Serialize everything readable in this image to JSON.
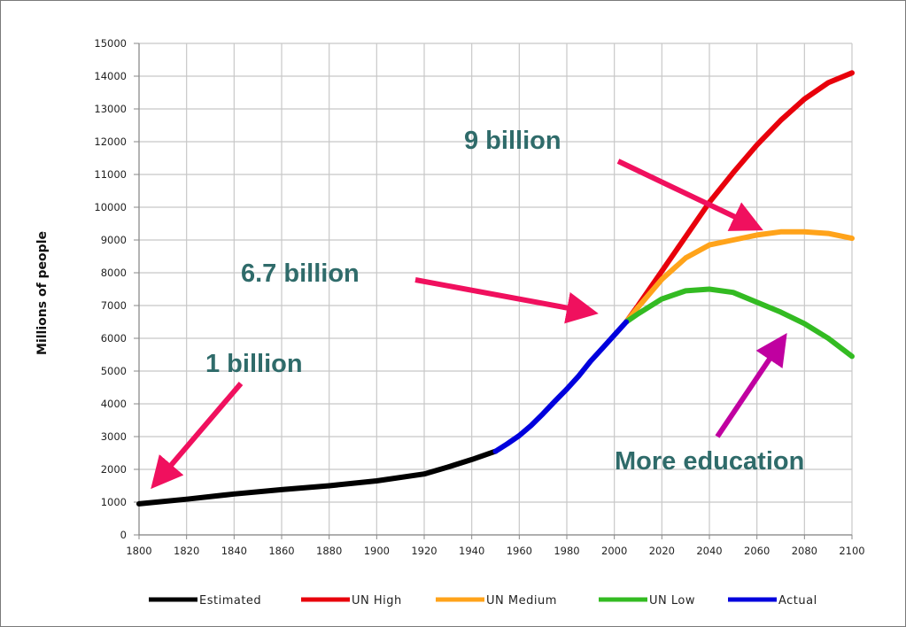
{
  "chart_data": {
    "type": "line",
    "title": "",
    "xlabel": "",
    "ylabel": "Millions of people",
    "xlim": [
      1800,
      2100
    ],
    "ylim": [
      0,
      15000
    ],
    "x_ticks": [
      1800,
      1820,
      1840,
      1860,
      1880,
      1900,
      1920,
      1940,
      1960,
      1980,
      2000,
      2020,
      2040,
      2060,
      2080,
      2100
    ],
    "y_ticks": [
      0,
      1000,
      2000,
      3000,
      4000,
      5000,
      6000,
      7000,
      8000,
      9000,
      10000,
      11000,
      12000,
      13000,
      14000,
      15000
    ],
    "grid": true,
    "legend_position": "bottom",
    "series": [
      {
        "name": "Estimated",
        "color": "#000000",
        "points": [
          [
            1800,
            950
          ],
          [
            1820,
            1090
          ],
          [
            1840,
            1250
          ],
          [
            1860,
            1380
          ],
          [
            1880,
            1500
          ],
          [
            1900,
            1650
          ],
          [
            1920,
            1860
          ],
          [
            1930,
            2070
          ],
          [
            1940,
            2300
          ],
          [
            1950,
            2550
          ]
        ]
      },
      {
        "name": "UN High",
        "color": "#e8000b",
        "points": [
          [
            2005,
            6500
          ],
          [
            2010,
            7000
          ],
          [
            2020,
            8050
          ],
          [
            2030,
            9100
          ],
          [
            2040,
            10150
          ],
          [
            2050,
            11050
          ],
          [
            2060,
            11900
          ],
          [
            2070,
            12650
          ],
          [
            2080,
            13300
          ],
          [
            2090,
            13800
          ],
          [
            2100,
            14100
          ]
        ]
      },
      {
        "name": "UN Medium",
        "color": "#ffa31a",
        "points": [
          [
            2005,
            6500
          ],
          [
            2010,
            6950
          ],
          [
            2020,
            7800
          ],
          [
            2030,
            8450
          ],
          [
            2040,
            8850
          ],
          [
            2050,
            9000
          ],
          [
            2060,
            9150
          ],
          [
            2070,
            9250
          ],
          [
            2080,
            9250
          ],
          [
            2090,
            9200
          ],
          [
            2100,
            9050
          ]
        ]
      },
      {
        "name": "UN Low",
        "color": "#33bb22",
        "points": [
          [
            2005,
            6500
          ],
          [
            2010,
            6750
          ],
          [
            2020,
            7200
          ],
          [
            2030,
            7450
          ],
          [
            2040,
            7500
          ],
          [
            2050,
            7400
          ],
          [
            2060,
            7100
          ],
          [
            2070,
            6800
          ],
          [
            2080,
            6450
          ],
          [
            2090,
            6000
          ],
          [
            2100,
            5450
          ]
        ]
      },
      {
        "name": "Actual",
        "color": "#0000dd",
        "points": [
          [
            1950,
            2550
          ],
          [
            1955,
            2780
          ],
          [
            1960,
            3030
          ],
          [
            1965,
            3340
          ],
          [
            1970,
            3700
          ],
          [
            1975,
            4080
          ],
          [
            1980,
            4450
          ],
          [
            1985,
            4850
          ],
          [
            1990,
            5300
          ],
          [
            1995,
            5700
          ],
          [
            2000,
            6100
          ],
          [
            2005,
            6500
          ]
        ]
      }
    ],
    "annotations": [
      {
        "text": "1 billion",
        "arrow_color": "#f0105e"
      },
      {
        "text": "6.7 billion",
        "arrow_color": "#f0105e"
      },
      {
        "text": "9 billion",
        "arrow_color": "#f0105e"
      },
      {
        "text": "More education",
        "arrow_color": "#c000a0"
      }
    ]
  }
}
